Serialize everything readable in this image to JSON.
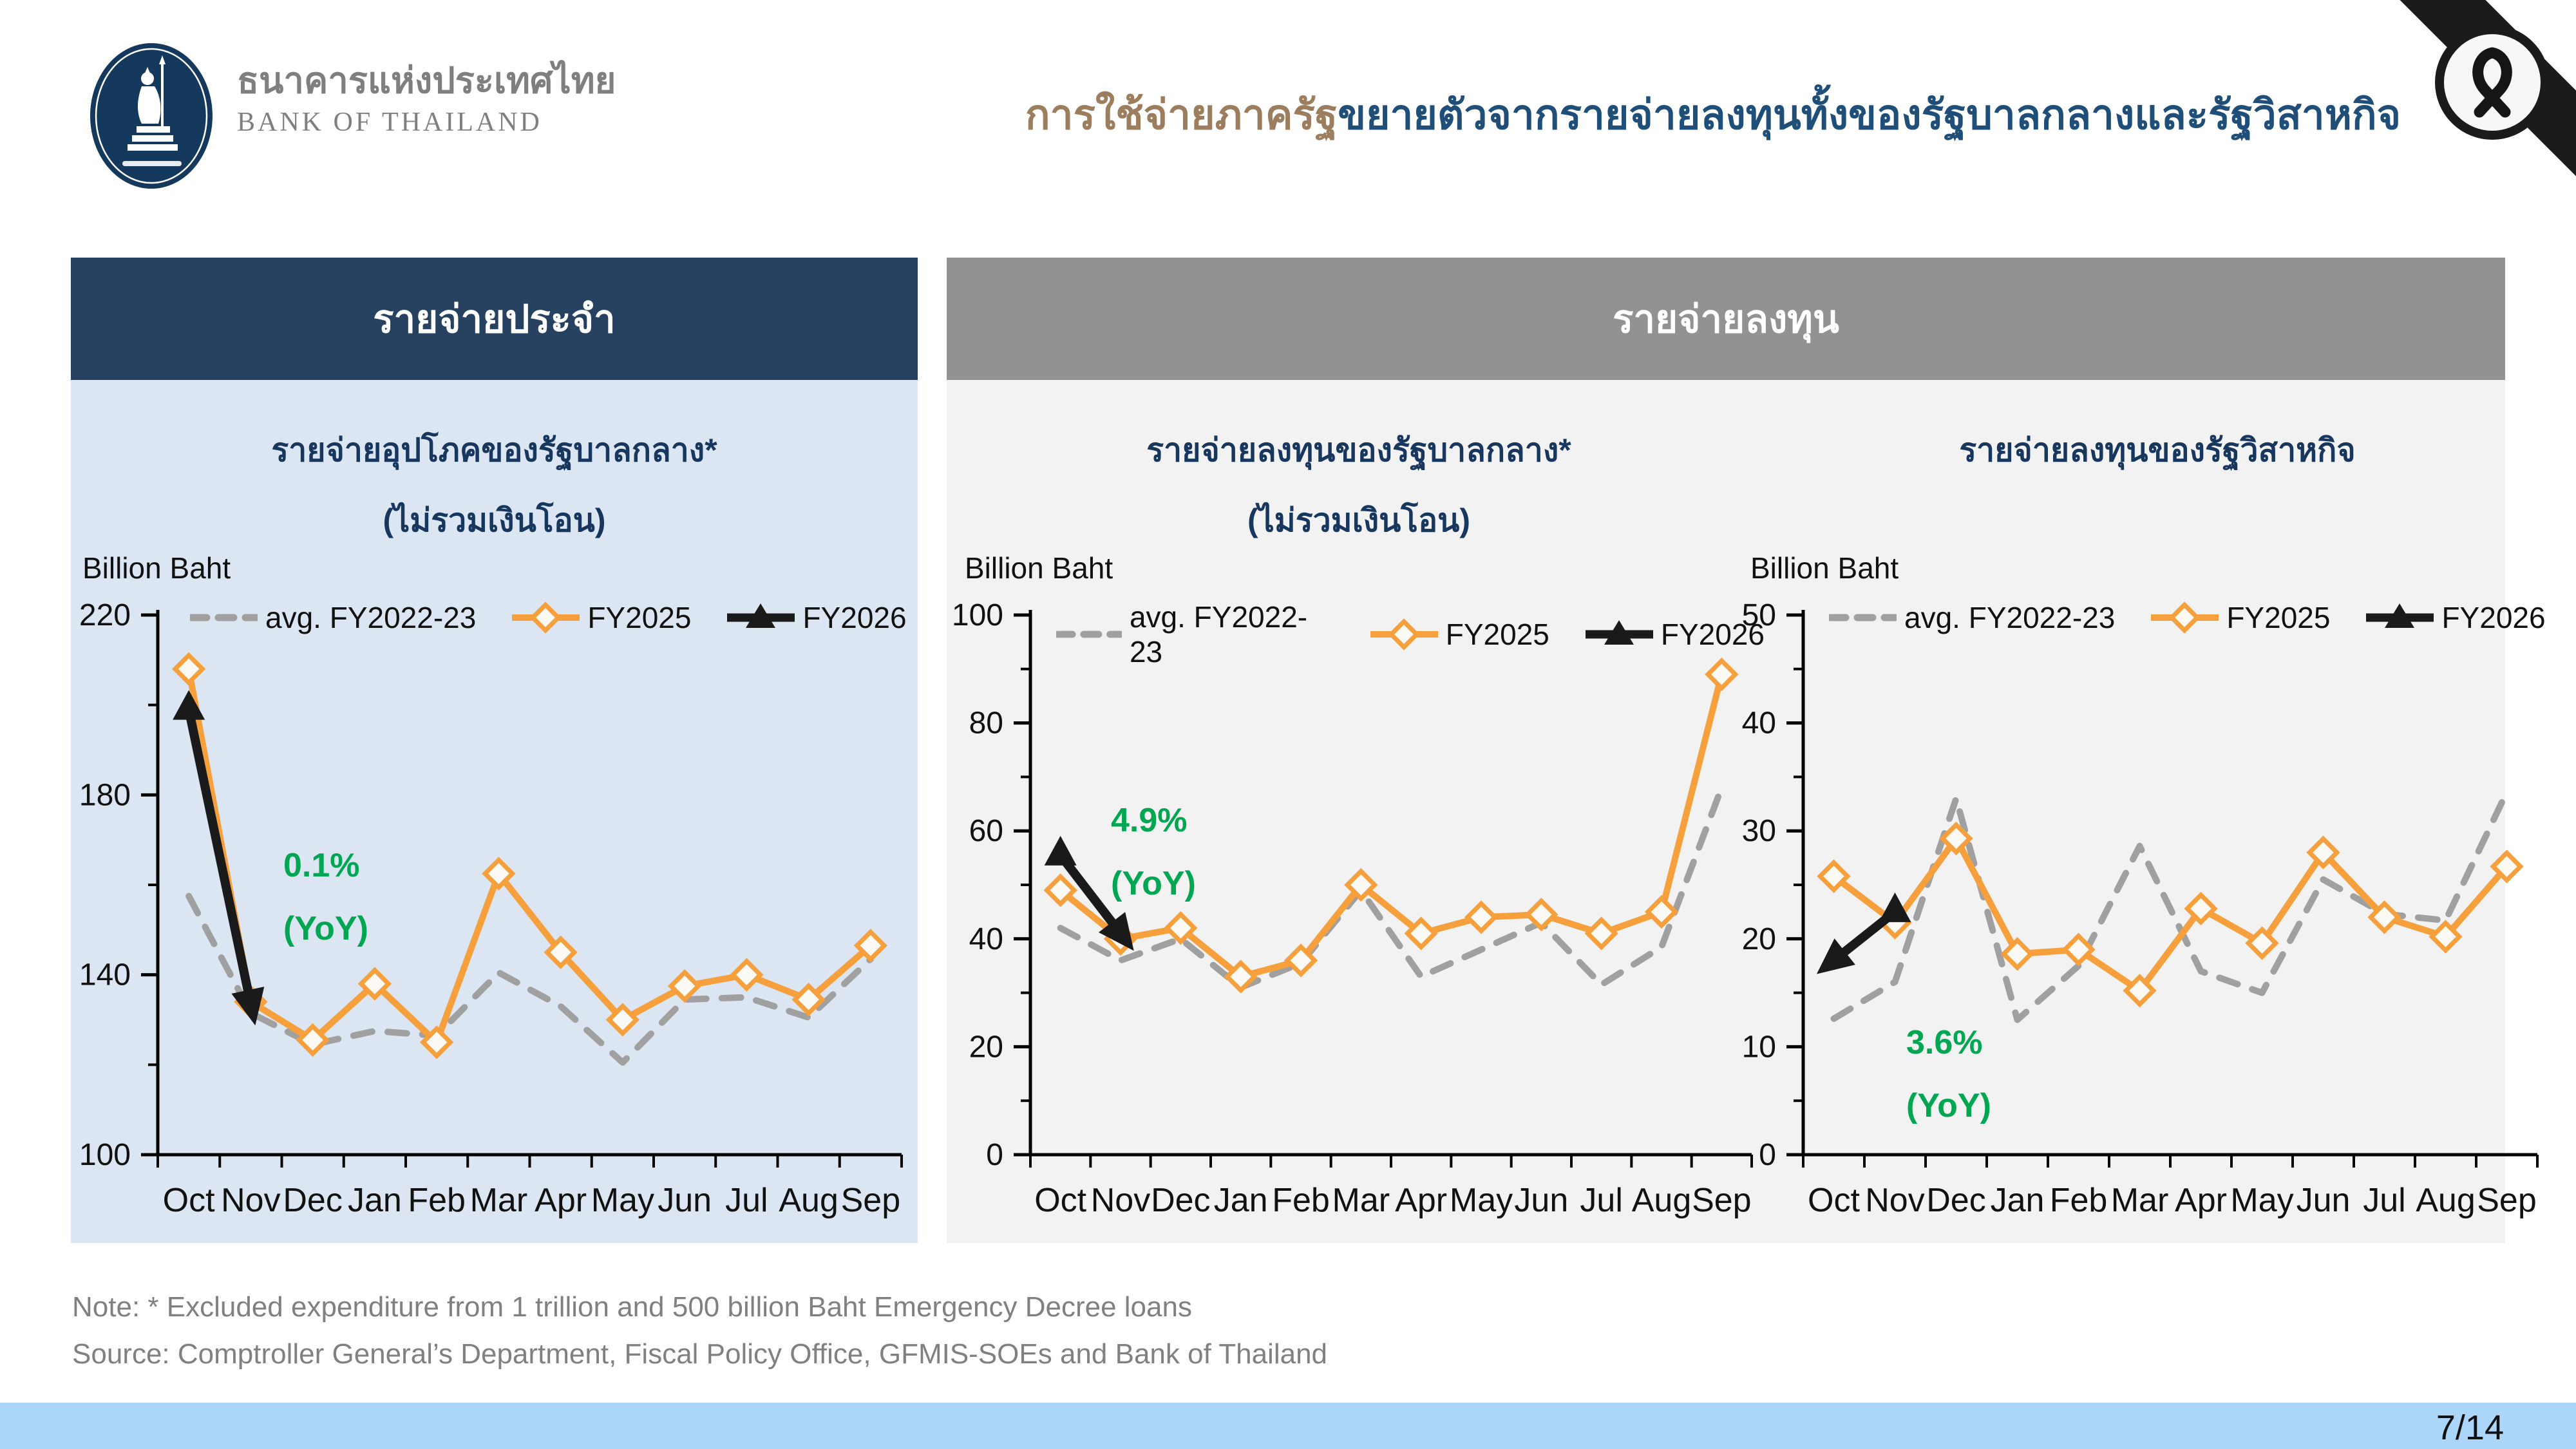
{
  "header": {
    "logo_title": "ธนาคารแห่งประเทศไทย",
    "logo_subtitle": "BANK OF THAILAND",
    "title_highlight": "การใช้จ่ายภาครัฐ",
    "title_rest": "ขยายตัวจากรายจ่ายลงทุนทั้งของรัฐบาลกลางและรัฐวิสาหกิจ"
  },
  "panels": {
    "left_header": "รายจ่ายประจำ",
    "right_header": "รายจ่ายลงทุน"
  },
  "months": [
    "Oct",
    "Nov",
    "Dec",
    "Jan",
    "Feb",
    "Mar",
    "Apr",
    "May",
    "Jun",
    "Jul",
    "Aug",
    "Sep"
  ],
  "colors": {
    "orange": "#F5A03C",
    "gray_series": "#A0A0A0",
    "black_series": "#1A1A1A",
    "green_annotation": "#00A651",
    "navy_band": "#274160",
    "gray_band": "#929292",
    "panel_blue": "#DCE6F2",
    "panel_gray": "#F2F2F2",
    "title_navy": "#1F4E79",
    "title_brown": "#9C7D5E",
    "bottom_bar": "#ABD5F9",
    "logo_navy": "#14395C"
  },
  "chart_data": [
    {
      "type": "line",
      "title": "รายจ่ายอุปโภคของรัฐบาลกลาง*",
      "title2": "(ไม่รวมเงินโอน)",
      "unit": "Billion Baht",
      "ylim": [
        100,
        220
      ],
      "yticks": [
        100,
        140,
        180,
        220
      ],
      "yminor": [
        120,
        160,
        200
      ],
      "annotation": {
        "pct": "0.1%",
        "label": "(YoY)"
      },
      "series": [
        {
          "name": "avg. FY2022-23",
          "style": "dashed",
          "color": "#A0A0A0",
          "values": [
            157.5,
            131.5,
            124.5,
            127.5,
            126.5,
            140.5,
            133,
            120.5,
            134.5,
            135,
            130.5,
            143.5
          ]
        },
        {
          "name": "FY2025",
          "style": "solid-diamond",
          "color": "#F5A03C",
          "values": [
            208,
            134,
            125.5,
            138,
            125,
            162.5,
            145,
            130,
            137.5,
            140,
            134.5,
            146.5
          ]
        },
        {
          "name": "FY2026",
          "style": "arrow",
          "color": "#1A1A1A",
          "head": "last",
          "values": [
            199,
            133.5
          ]
        }
      ]
    },
    {
      "type": "line",
      "title": "รายจ่ายลงทุนของรัฐบาลกลาง*",
      "title2": "(ไม่รวมเงินโอน)",
      "unit": "Billion Baht",
      "ylim": [
        0,
        100
      ],
      "yticks": [
        0,
        20,
        40,
        60,
        80,
        100
      ],
      "yminor": [
        10,
        30,
        50,
        70,
        90
      ],
      "annotation": {
        "pct": "4.9%",
        "label": "(YoY)"
      },
      "series": [
        {
          "name": "avg. FY2022-23",
          "style": "dashed",
          "color": "#A0A0A0",
          "values": [
            42,
            36,
            40,
            31,
            35.5,
            49,
            33,
            38,
            43,
            31.5,
            38.5,
            68
          ]
        },
        {
          "name": "FY2025",
          "style": "solid-diamond",
          "color": "#F5A03C",
          "values": [
            49,
            40,
            42,
            33,
            36,
            50,
            41,
            44,
            44.5,
            41,
            45,
            89
          ]
        },
        {
          "name": "FY2026",
          "style": "arrow",
          "color": "#1A1A1A",
          "head": "last",
          "values": [
            55.5,
            41
          ]
        }
      ]
    },
    {
      "type": "line",
      "title": "รายจ่ายลงทุนของรัฐวิสาหกิจ",
      "title2": "",
      "unit": "Billion Baht",
      "ylim": [
        0,
        50
      ],
      "yticks": [
        0,
        10,
        20,
        30,
        40,
        50
      ],
      "yminor": [
        5,
        15,
        25,
        35,
        45
      ],
      "annotation": {
        "pct": "3.6%",
        "label": "(YoY)"
      },
      "series": [
        {
          "name": "avg. FY2022-23",
          "style": "dashed",
          "color": "#A0A0A0",
          "values": [
            12.6,
            16,
            33,
            12.5,
            17.5,
            28.6,
            17,
            15,
            25.5,
            22.3,
            21.7,
            33.6
          ]
        },
        {
          "name": "FY2025",
          "style": "solid-diamond",
          "color": "#F5A03C",
          "values": [
            25.8,
            21.5,
            29.3,
            18.6,
            19,
            15.2,
            22.8,
            19.6,
            28,
            22,
            20.2,
            26.7
          ]
        },
        {
          "name": "FY2026",
          "style": "arrow",
          "color": "#1A1A1A",
          "head": "first",
          "values": [
            18,
            22.5
          ]
        }
      ]
    }
  ],
  "footer": {
    "note": "Note: * Excluded expenditure from 1 trillion and 500 billion Baht Emergency Decree loans",
    "source": "Source: Comptroller General’s Department, Fiscal Policy Office, GFMIS-SOEs and Bank of Thailand",
    "page": "7/14"
  }
}
